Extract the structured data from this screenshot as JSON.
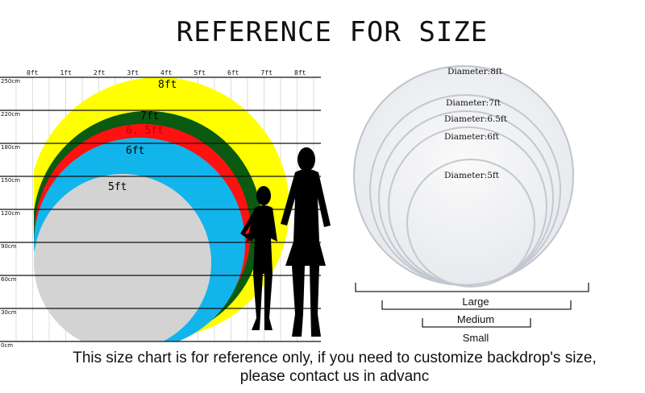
{
  "title": "REFERENCE FOR SIZE",
  "ruler": {
    "feet": [
      "0ft",
      "1ft",
      "2ft",
      "3ft",
      "4ft",
      "5ft",
      "6ft",
      "7ft",
      "8ft"
    ],
    "heights": [
      "250cm",
      "220cm",
      "180cm",
      "150cm",
      "120cm",
      "90cm",
      "60cm",
      "30cm",
      "0cm"
    ]
  },
  "circles": [
    {
      "label": "8ft",
      "color": "#ffff00"
    },
    {
      "label": "7ft",
      "color": "#0a5a12"
    },
    {
      "label": "6. 5ft",
      "color": "#ff1111"
    },
    {
      "label": "6ft",
      "color": "#12b4ec"
    },
    {
      "label": "5ft",
      "color": "#d3d3d3"
    }
  ],
  "photo": {
    "diameters": [
      "Diameter:8ft",
      "Diameter:7ft",
      "Diameter:6.5ft",
      "Diameter:6ft",
      "Diameter:5ft"
    ]
  },
  "brackets": [
    "Large",
    "Medium",
    "Small"
  ],
  "caption": {
    "line1": "This size chart is for reference only, if you need to customize backdrop's size,",
    "line2": "please contact us in advanc"
  }
}
